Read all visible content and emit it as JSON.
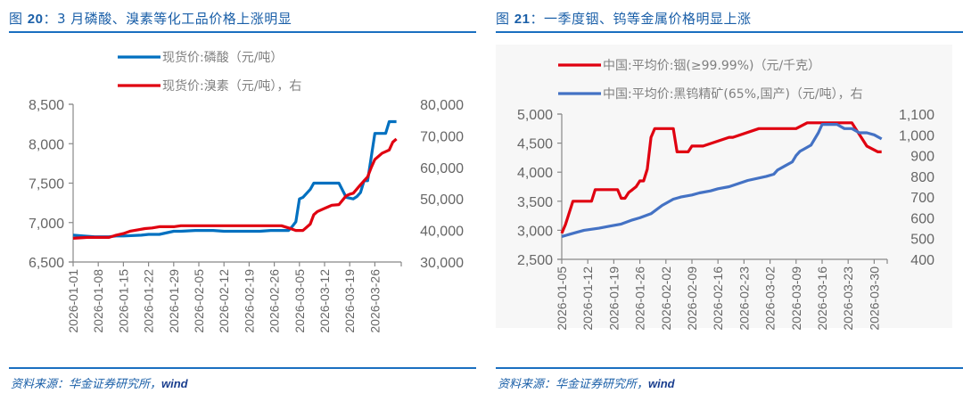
{
  "panels": [
    {
      "title_prefix": "图 ",
      "title_num": "20",
      "title_rest": "：3 月磷酸、溴素等化工品价格上涨明显",
      "source_cn": "资料来源：华金证券研究所，",
      "source_en": "wind"
    },
    {
      "title_prefix": "图 ",
      "title_num": "21",
      "title_rest": "：一季度铟、钨等金属价格明显上涨",
      "source_cn": "资料来源：华金证券研究所，",
      "source_en": "wind"
    }
  ],
  "chart_data": [
    {
      "type": "line",
      "title": "图 20：3 月磷酸、溴素等化工品价格上涨明显",
      "xlabel": "",
      "ylabel": "",
      "legend_position": "top",
      "grid": false,
      "x_tick_labels": [
        "2026-01-01",
        "2026-01-08",
        "2026-01-15",
        "2026-01-22",
        "2026-01-29",
        "2026-02-05",
        "2026-02-12",
        "2026-02-19",
        "2026-02-26",
        "2026-03-05",
        "2026-03-12",
        "2026-03-19",
        "2026-03-26"
      ],
      "y_left": {
        "ticks": [
          "6,500",
          "7,000",
          "7,500",
          "8,000",
          "8,500"
        ],
        "range": [
          6500,
          8500
        ]
      },
      "y_right": {
        "ticks": [
          "30,000",
          "40,000",
          "50,000",
          "60,000",
          "70,000",
          "80,000"
        ],
        "range": [
          30000,
          80000
        ]
      },
      "series": [
        {
          "name": "现货价:磷酸（元/吨）",
          "axis": "left",
          "color": "#0070c0",
          "x_days": [
            0,
            3,
            6,
            10,
            12,
            14,
            19,
            21,
            24,
            28,
            30,
            34,
            39,
            42,
            46,
            52,
            55,
            58,
            60,
            61,
            62,
            63,
            64,
            66,
            67,
            69,
            71,
            74,
            76,
            78,
            79,
            80,
            81,
            82,
            84,
            85,
            86,
            87,
            88,
            89,
            90
          ],
          "values": [
            6840,
            6830,
            6820,
            6820,
            6830,
            6830,
            6840,
            6850,
            6850,
            6890,
            6890,
            6900,
            6900,
            6890,
            6890,
            6890,
            6900,
            6900,
            6900,
            6950,
            7010,
            7300,
            7320,
            7420,
            7500,
            7500,
            7500,
            7500,
            7320,
            7300,
            7330,
            7380,
            7530,
            7530,
            8130,
            8130,
            8130,
            8130,
            8280,
            8280,
            8280
          ]
        },
        {
          "name": "现货价:溴素（元/吨），右",
          "axis": "right",
          "color": "#e00010",
          "x_days": [
            0,
            4,
            8,
            10,
            12,
            14,
            16,
            18,
            20,
            22,
            24,
            28,
            30,
            34,
            40,
            46,
            52,
            58,
            60,
            62,
            64,
            66,
            67,
            68,
            70,
            71,
            72,
            74,
            76,
            77,
            78,
            80,
            82,
            83,
            84,
            86,
            88,
            89,
            90
          ],
          "values": [
            37500,
            37800,
            37800,
            37800,
            38500,
            39000,
            39800,
            40200,
            40600,
            40800,
            41200,
            41200,
            41500,
            41500,
            41500,
            41500,
            41500,
            41500,
            40800,
            40000,
            40000,
            42000,
            45000,
            46000,
            47000,
            47500,
            48000,
            48200,
            51000,
            51500,
            51800,
            54500,
            57000,
            60000,
            62500,
            64500,
            65500,
            68000,
            69000
          ]
        }
      ]
    },
    {
      "type": "line",
      "title": "图 21：一季度铟、钨等金属价格明显上涨",
      "xlabel": "",
      "ylabel": "",
      "legend_position": "top",
      "grid": false,
      "x_tick_labels": [
        "2026-01-05",
        "2026-01-12",
        "2026-01-19",
        "2026-01-26",
        "2026-02-02",
        "2026-02-09",
        "2026-02-16",
        "2026-02-23",
        "2026-03-02",
        "2026-03-09",
        "2026-03-16",
        "2026-03-23",
        "2026-03-30"
      ],
      "y_left": {
        "ticks": [
          "2,500",
          "3,000",
          "3,500",
          "4,000",
          "4,500",
          "5,000"
        ],
        "range": [
          2500,
          5000
        ]
      },
      "y_right": {
        "ticks": [
          "400",
          "500",
          "600",
          "700",
          "800",
          "900",
          "1,000",
          "1,100"
        ],
        "range": [
          400,
          1100
        ]
      },
      "series": [
        {
          "name": "中国:平均价:铟(≥99.99%)（元/千克）",
          "axis": "left",
          "color": "#e00010",
          "x_days": [
            0,
            1,
            3,
            4,
            7,
            8,
            9,
            10,
            14,
            15,
            16,
            17,
            18,
            19,
            20,
            21,
            22,
            23,
            24,
            25,
            26,
            28,
            29,
            30,
            31,
            32,
            34,
            35,
            38,
            45,
            46,
            53,
            55,
            56,
            57,
            63,
            66,
            67,
            68,
            70,
            71,
            72,
            73,
            75,
            78,
            79,
            80,
            82,
            85,
            86
          ],
          "values": [
            2950,
            3100,
            3500,
            3500,
            3500,
            3500,
            3700,
            3700,
            3700,
            3700,
            3550,
            3550,
            3650,
            3700,
            3750,
            3850,
            3850,
            4050,
            4600,
            4750,
            4750,
            4750,
            4750,
            4750,
            4350,
            4350,
            4350,
            4450,
            4450,
            4600,
            4600,
            4750,
            4750,
            4750,
            4750,
            4750,
            4850,
            4850,
            4850,
            4850,
            4850,
            4850,
            4850,
            4850,
            4850,
            4750,
            4650,
            4450,
            4350,
            4350
          ]
        },
        {
          "name": "中国:平均价:黑钨精矿(65%,国产)（元/吨），右",
          "axis": "right",
          "color": "#4472c4",
          "x_days": [
            0,
            2,
            4,
            6,
            10,
            13,
            16,
            19,
            21,
            24,
            27,
            30,
            32,
            35,
            37,
            40,
            42,
            45,
            50,
            55,
            57,
            58,
            60,
            62,
            63,
            64,
            65,
            67,
            69,
            70,
            72,
            74,
            76,
            78,
            80,
            82,
            84,
            86
          ],
          "values": [
            510,
            520,
            530,
            540,
            550,
            560,
            570,
            590,
            600,
            620,
            660,
            690,
            700,
            710,
            720,
            730,
            740,
            750,
            780,
            800,
            810,
            830,
            850,
            870,
            900,
            920,
            930,
            950,
            1010,
            1050,
            1050,
            1050,
            1030,
            1030,
            1010,
            1010,
            1000,
            980
          ]
        }
      ]
    }
  ]
}
